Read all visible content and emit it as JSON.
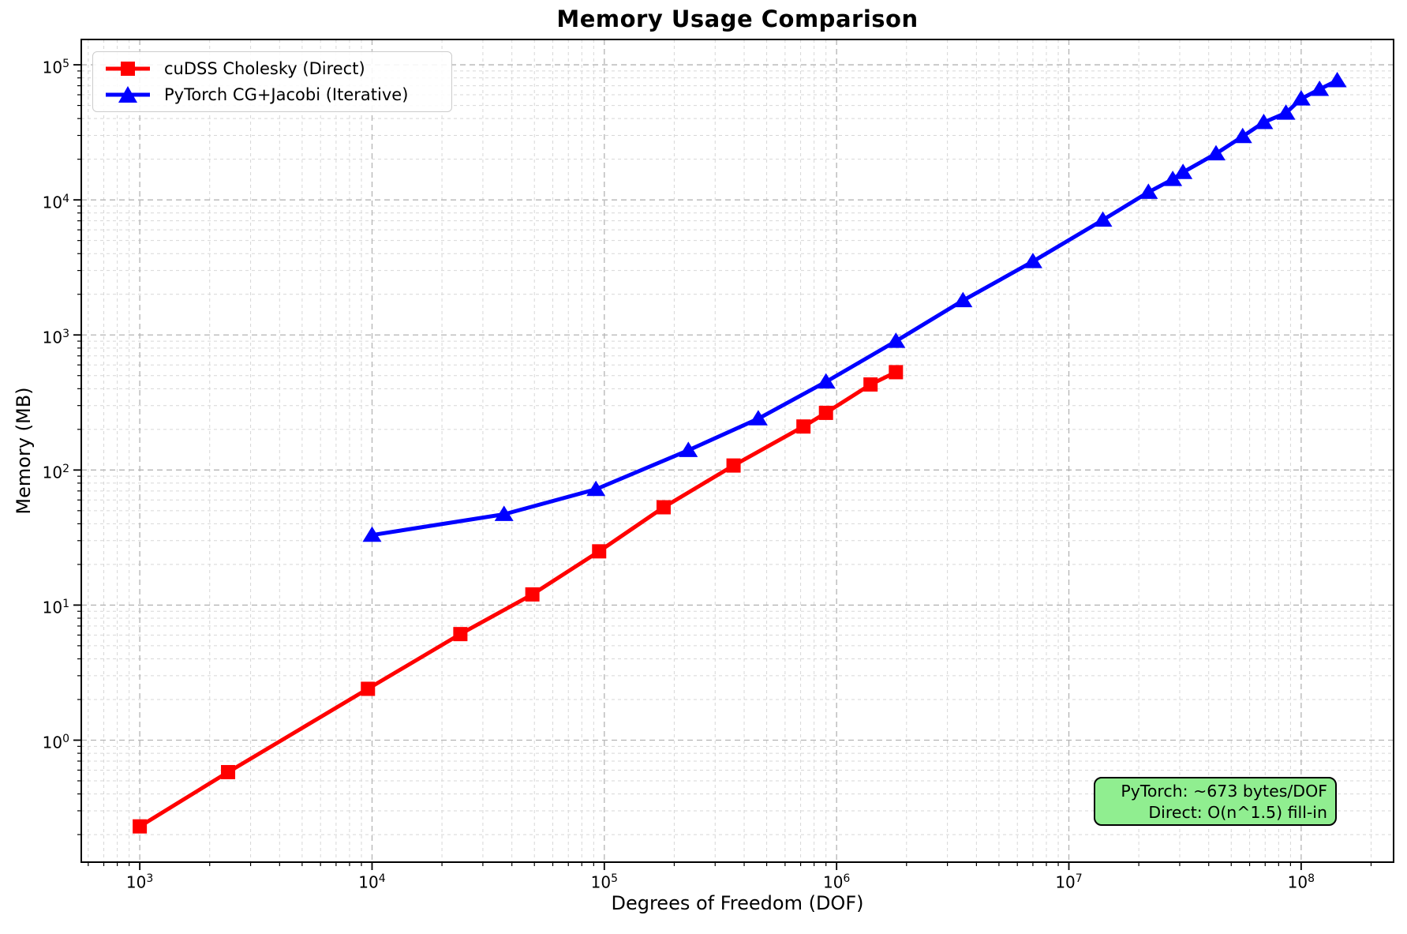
{
  "chart_data": {
    "type": "line",
    "title": "Memory Usage Comparison",
    "xlabel": "Degrees of Freedom (DOF)",
    "ylabel": "Memory (MB)",
    "x_scale": "log",
    "y_scale": "log",
    "xlim": [
      560,
      250000000
    ],
    "ylim": [
      0.125,
      154000
    ],
    "x_tick_exponents": [
      3,
      4,
      5,
      6,
      7,
      8
    ],
    "y_tick_exponents": [
      0,
      1,
      2,
      3,
      4,
      5
    ],
    "grid": {
      "which": "both",
      "style": "dashed",
      "major_color": "#b4b4b4",
      "minor_color": "#d7d7d7"
    },
    "legend_position": "upper left",
    "series": [
      {
        "name": "cuDSS Cholesky (Direct)",
        "color": "#ff0000",
        "marker": "square",
        "x": [
          1000,
          2400,
          9600,
          24000,
          49000,
          95000,
          180000,
          360000,
          720000,
          900000,
          1400000,
          1800000
        ],
        "y": [
          0.23,
          0.58,
          2.4,
          6.1,
          12,
          25,
          53,
          108,
          210,
          265,
          430,
          530
        ]
      },
      {
        "name": "PyTorch CG+Jacobi (Iterative)",
        "color": "#0000ff",
        "marker": "triangle",
        "x": [
          10000,
          37000,
          92000,
          230000,
          460000,
          900000,
          1800000,
          3500000,
          7000000,
          14000000,
          22000000,
          28000000,
          31000000,
          43000000,
          56000000,
          69000000,
          86000000,
          100000000,
          120000000,
          143000000
        ],
        "y": [
          33,
          47,
          72,
          140,
          240,
          450,
          900,
          1800,
          3500,
          7100,
          11400,
          14200,
          16000,
          22000,
          29500,
          37500,
          44000,
          56000,
          66000,
          76500
        ]
      }
    ],
    "annotation": {
      "line1": "PyTorch: ~673 bytes/DOF",
      "line2": "Direct: O(n^1.5) fill-in",
      "bg_color": "#90ee90",
      "border_color": "#000000"
    }
  }
}
